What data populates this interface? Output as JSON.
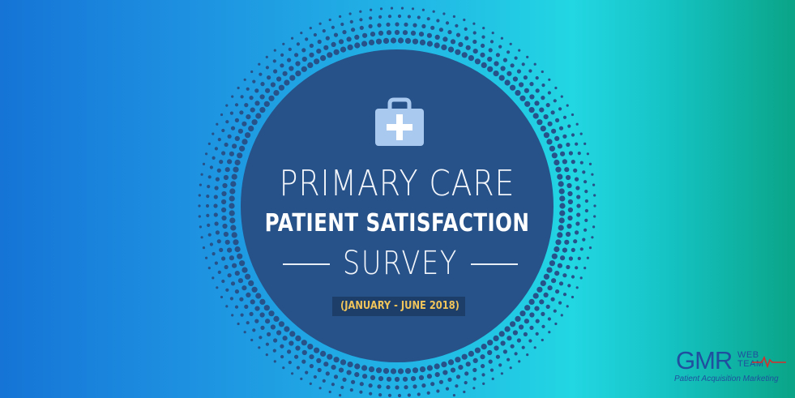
{
  "colors": {
    "gradient_left": "#1574d6",
    "gradient_mid": "#22d6e2",
    "gradient_right": "#0aa487",
    "circle": "#265189",
    "dots": "#265189",
    "date_text": "#f0c45a",
    "logo_blue": "#1f4f9e",
    "logo_red": "#d62d2d"
  },
  "icon": {
    "name": "medical-kit-icon"
  },
  "title": {
    "line1": "PRIMARY CARE",
    "line2": "PATIENT SATISFACTION",
    "line3": "SURVEY"
  },
  "date_range": "(JANUARY - JUNE 2018)",
  "logo": {
    "main": "GMR",
    "web": "WEB",
    "team": "TEAM",
    "tagline": "Patient Acquisition Marketing"
  }
}
